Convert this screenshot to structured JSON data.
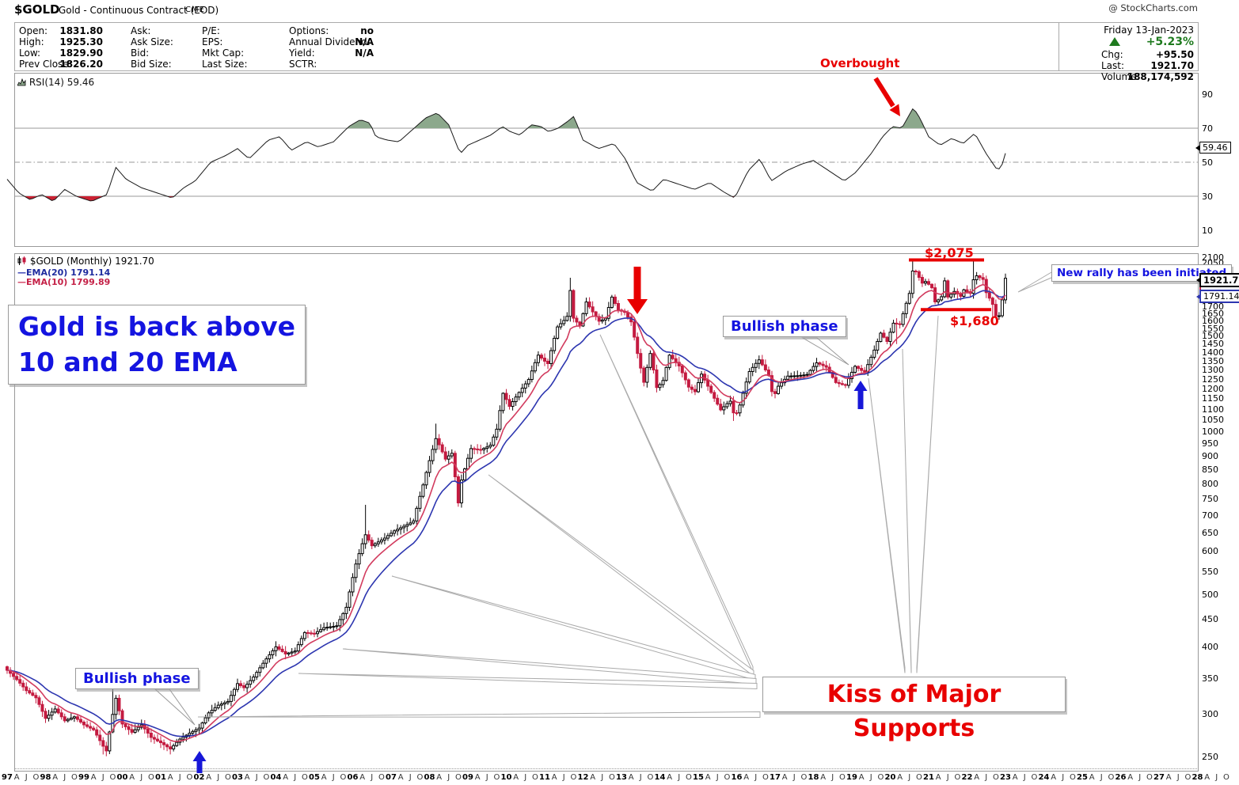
{
  "title": {
    "symbol": "$GOLD",
    "name": "Gold - Continuous Contract (EOD)",
    "exchange": "CME",
    "watermark": "@ StockCharts.com"
  },
  "info": {
    "col1": {
      "labels": [
        "Open:",
        "High:",
        "Low:",
        "Prev Close:"
      ],
      "values": [
        "1831.80",
        "1925.30",
        "1829.90",
        "1826.20"
      ]
    },
    "col2": {
      "labels": [
        "Ask:",
        "Ask Size:",
        "Bid:",
        "Bid Size:"
      ],
      "values": [
        "",
        "",
        "",
        ""
      ]
    },
    "col3": {
      "labels": [
        "P/E:",
        "EPS:",
        "Mkt Cap:",
        "Last Size:"
      ],
      "values": [
        "",
        "",
        "",
        ""
      ]
    },
    "col4": {
      "labels": [
        "Options:",
        "Annual Dividend:",
        "Yield:",
        "SCTR:"
      ],
      "values": [
        "no",
        "N/A",
        "N/A",
        ""
      ]
    },
    "quote": {
      "date": "Friday 13-Jan-2023",
      "pct": "+5.23%",
      "rows": [
        [
          "Chg:",
          "+95.50"
        ],
        [
          "Last:",
          "1921.70"
        ],
        [
          "Volume:",
          "188,174,592"
        ]
      ]
    }
  },
  "rsi_panel": {
    "legend": "RSI(14) 59.46",
    "tag": "59.46",
    "axis_labels": [
      90,
      70,
      50,
      30,
      10
    ],
    "annotation_overbought": "Overbought"
  },
  "main_panel": {
    "legend_symbol": "$GOLD (Monthly) 1921.70",
    "legend_ema20": "EMA(20) 1791.14",
    "legend_ema10": "EMA(10) 1799.89",
    "tag_last": "1921.70",
    "tag_ema20": "1791.14",
    "annotations": {
      "gold_back_line1": "Gold is back above",
      "gold_back_line2": "10 and 20 EMA",
      "bullish1": "Bullish phase",
      "bullish2": "Bullish phase",
      "new_rally": "New rally has been initiated",
      "kiss": "Kiss of Major Supports",
      "resistance": "$2,075",
      "support": "$1,680"
    }
  },
  "colors": {
    "annotation_blue": "#1414e0",
    "annotation_red": "#e80000",
    "candle_up_stroke": "#000000",
    "candle_down": "#c41b40",
    "ema10": "#d23b5e",
    "ema20": "#2d36b0",
    "legend_ema10_text": "#c42046",
    "legend_ema20_text": "#1e2b9e",
    "green": "#1e7a1e",
    "rsi_fill_overbought": "#8ca88c",
    "rsi_fill_oversold": "#cc2233",
    "gridline": "#999999",
    "fan_line": "#aaaaaa"
  },
  "chart_data": [
    {
      "type": "line",
      "name": "RSI(14)",
      "panel": "indicator",
      "last": 59.46,
      "ylim": [
        0,
        100
      ],
      "levels": {
        "overbought": 70,
        "midline": 50,
        "oversold": 30
      },
      "x_unit": "year_fraction",
      "points": [
        [
          1997.0,
          40
        ],
        [
          1997.3,
          32
        ],
        [
          1997.6,
          28
        ],
        [
          1997.9,
          31
        ],
        [
          1998.2,
          27
        ],
        [
          1998.5,
          34
        ],
        [
          1998.8,
          30
        ],
        [
          1999.2,
          27
        ],
        [
          1999.6,
          31
        ],
        [
          1999.83,
          47
        ],
        [
          2000.1,
          40
        ],
        [
          2000.5,
          35
        ],
        [
          2000.9,
          32
        ],
        [
          2001.3,
          29
        ],
        [
          2001.6,
          35
        ],
        [
          2001.9,
          39
        ],
        [
          2002.3,
          50
        ],
        [
          2002.7,
          54
        ],
        [
          2003.0,
          58
        ],
        [
          2003.3,
          52
        ],
        [
          2003.8,
          63
        ],
        [
          2004.1,
          65
        ],
        [
          2004.4,
          57
        ],
        [
          2004.8,
          62
        ],
        [
          2005.1,
          59
        ],
        [
          2005.5,
          62
        ],
        [
          2005.9,
          71
        ],
        [
          2006.2,
          75
        ],
        [
          2006.45,
          73
        ],
        [
          2006.6,
          65
        ],
        [
          2006.9,
          63
        ],
        [
          2007.2,
          62
        ],
        [
          2007.5,
          68
        ],
        [
          2007.9,
          76
        ],
        [
          2008.2,
          79
        ],
        [
          2008.5,
          72
        ],
        [
          2008.8,
          55
        ],
        [
          2009.0,
          60
        ],
        [
          2009.3,
          63
        ],
        [
          2009.6,
          66
        ],
        [
          2009.9,
          71
        ],
        [
          2010.1,
          68
        ],
        [
          2010.35,
          66
        ],
        [
          2010.66,
          72
        ],
        [
          2010.9,
          71
        ],
        [
          2011.1,
          68
        ],
        [
          2011.35,
          70
        ],
        [
          2011.6,
          74
        ],
        [
          2011.76,
          77
        ],
        [
          2012.0,
          63
        ],
        [
          2012.4,
          58
        ],
        [
          2012.8,
          61
        ],
        [
          2013.1,
          52
        ],
        [
          2013.4,
          38
        ],
        [
          2013.8,
          33
        ],
        [
          2014.1,
          40
        ],
        [
          2014.5,
          37
        ],
        [
          2014.9,
          34
        ],
        [
          2015.3,
          38
        ],
        [
          2015.7,
          32
        ],
        [
          2015.95,
          29
        ],
        [
          2016.3,
          45
        ],
        [
          2016.6,
          52
        ],
        [
          2016.9,
          39
        ],
        [
          2017.3,
          45
        ],
        [
          2017.7,
          49
        ],
        [
          2018.0,
          51
        ],
        [
          2018.4,
          45
        ],
        [
          2018.8,
          39
        ],
        [
          2019.1,
          44
        ],
        [
          2019.5,
          55
        ],
        [
          2019.8,
          65
        ],
        [
          2020.06,
          71
        ],
        [
          2020.3,
          70
        ],
        [
          2020.6,
          82
        ],
        [
          2020.77,
          76
        ],
        [
          2021.0,
          65
        ],
        [
          2021.3,
          60
        ],
        [
          2021.6,
          64
        ],
        [
          2021.9,
          61
        ],
        [
          2022.2,
          67
        ],
        [
          2022.5,
          55
        ],
        [
          2022.8,
          45
        ],
        [
          2022.95,
          50
        ],
        [
          2023.04,
          59.46
        ]
      ]
    },
    {
      "type": "candlestick",
      "name": "$GOLD Monthly",
      "yscale": "log",
      "ylim": [
        235,
        2150
      ],
      "xlim": [
        1997,
        2028.5
      ],
      "last": 1921.7,
      "overlays": [
        {
          "type": "ema",
          "period": 20,
          "last": 1791.14
        },
        {
          "type": "ema",
          "period": 10,
          "last": 1799.89
        }
      ],
      "levels": [
        {
          "label": "$2,075",
          "price": 2075
        },
        {
          "label": "$1,680",
          "price": 1680
        }
      ],
      "close_anchors": [
        [
          1997.0,
          362
        ],
        [
          1997.25,
          348
        ],
        [
          1997.5,
          332
        ],
        [
          1997.75,
          322
        ],
        [
          1998.0,
          295
        ],
        [
          1998.25,
          307
        ],
        [
          1998.5,
          292
        ],
        [
          1998.75,
          297
        ],
        [
          1999.0,
          287
        ],
        [
          1999.25,
          281
        ],
        [
          1999.58,
          256
        ],
        [
          1999.75,
          300
        ],
        [
          1999.83,
          322
        ],
        [
          2000.0,
          288
        ],
        [
          2000.25,
          278
        ],
        [
          2000.5,
          287
        ],
        [
          2000.75,
          272
        ],
        [
          2001.0,
          266
        ],
        [
          2001.25,
          259
        ],
        [
          2001.5,
          270
        ],
        [
          2001.75,
          277
        ],
        [
          2002.0,
          283
        ],
        [
          2002.25,
          302
        ],
        [
          2002.5,
          312
        ],
        [
          2002.75,
          317
        ],
        [
          2003.0,
          342
        ],
        [
          2003.17,
          336
        ],
        [
          2003.42,
          352
        ],
        [
          2003.75,
          380
        ],
        [
          2004.0,
          400
        ],
        [
          2004.25,
          388
        ],
        [
          2004.5,
          393
        ],
        [
          2004.75,
          425
        ],
        [
          2005.0,
          423
        ],
        [
          2005.25,
          434
        ],
        [
          2005.58,
          437
        ],
        [
          2005.83,
          472
        ],
        [
          2006.08,
          568
        ],
        [
          2006.33,
          645
        ],
        [
          2006.5,
          615
        ],
        [
          2006.83,
          635
        ],
        [
          2007.08,
          655
        ],
        [
          2007.33,
          668
        ],
        [
          2007.58,
          682
        ],
        [
          2007.83,
          795
        ],
        [
          2008.08,
          925
        ],
        [
          2008.17,
          972
        ],
        [
          2008.42,
          888
        ],
        [
          2008.58,
          915
        ],
        [
          2008.75,
          738
        ],
        [
          2008.83,
          812
        ],
        [
          2009.08,
          930
        ],
        [
          2009.33,
          925
        ],
        [
          2009.58,
          942
        ],
        [
          2009.75,
          1010
        ],
        [
          2009.92,
          1180
        ],
        [
          2010.08,
          1112
        ],
        [
          2010.33,
          1180
        ],
        [
          2010.58,
          1246
        ],
        [
          2010.83,
          1385
        ],
        [
          2011.08,
          1332
        ],
        [
          2011.33,
          1560
        ],
        [
          2011.58,
          1625
        ],
        [
          2011.67,
          1830
        ],
        [
          2011.75,
          1620
        ],
        [
          2011.92,
          1566
        ],
        [
          2012.08,
          1737
        ],
        [
          2012.25,
          1664
        ],
        [
          2012.42,
          1598
        ],
        [
          2012.58,
          1616
        ],
        [
          2012.75,
          1772
        ],
        [
          2012.92,
          1675
        ],
        [
          2013.08,
          1662
        ],
        [
          2013.25,
          1595
        ],
        [
          2013.42,
          1390
        ],
        [
          2013.58,
          1230
        ],
        [
          2013.75,
          1394
        ],
        [
          2013.92,
          1202
        ],
        [
          2014.08,
          1240
        ],
        [
          2014.25,
          1384
        ],
        [
          2014.5,
          1322
        ],
        [
          2014.75,
          1208
        ],
        [
          2014.92,
          1184
        ],
        [
          2015.08,
          1278
        ],
        [
          2015.33,
          1182
        ],
        [
          2015.58,
          1096
        ],
        [
          2015.83,
          1140
        ],
        [
          2015.95,
          1061
        ],
        [
          2016.08,
          1117
        ],
        [
          2016.33,
          1290
        ],
        [
          2016.58,
          1358
        ],
        [
          2016.83,
          1272
        ],
        [
          2016.95,
          1152
        ],
        [
          2017.08,
          1212
        ],
        [
          2017.33,
          1266
        ],
        [
          2017.58,
          1268
        ],
        [
          2017.83,
          1274
        ],
        [
          2018.08,
          1340
        ],
        [
          2018.33,
          1316
        ],
        [
          2018.58,
          1232
        ],
        [
          2018.83,
          1216
        ],
        [
          2019.08,
          1320
        ],
        [
          2019.33,
          1286
        ],
        [
          2019.58,
          1412
        ],
        [
          2019.75,
          1520
        ],
        [
          2019.92,
          1466
        ],
        [
          2020.08,
          1586
        ],
        [
          2020.25,
          1577
        ],
        [
          2020.5,
          1800
        ],
        [
          2020.58,
          1980
        ],
        [
          2020.67,
          1974
        ],
        [
          2020.83,
          1880
        ],
        [
          2020.92,
          1894
        ],
        [
          2021.08,
          1848
        ],
        [
          2021.17,
          1732
        ],
        [
          2021.33,
          1770
        ],
        [
          2021.42,
          1904
        ],
        [
          2021.5,
          1772
        ],
        [
          2021.67,
          1816
        ],
        [
          2021.83,
          1776
        ],
        [
          2021.92,
          1830
        ],
        [
          2022.08,
          1796
        ],
        [
          2022.17,
          1912
        ],
        [
          2022.25,
          1940
        ],
        [
          2022.42,
          1910
        ],
        [
          2022.5,
          1806
        ],
        [
          2022.58,
          1766
        ],
        [
          2022.67,
          1716
        ],
        [
          2022.75,
          1636
        ],
        [
          2022.83,
          1632
        ],
        [
          2022.92,
          1756
        ],
        [
          2023.0,
          1920
        ]
      ],
      "spikes": [
        {
          "m": "1999-10",
          "high": 338
        },
        {
          "m": "2006-05",
          "high": 732
        },
        {
          "m": "2008-03",
          "high": 1034
        },
        {
          "m": "2011-09",
          "high": 1924
        },
        {
          "m": "2020-03",
          "low": 1451
        },
        {
          "m": "2020-08",
          "high": 2075
        },
        {
          "m": "2022-03",
          "high": 2079
        },
        {
          "m": "2015-12",
          "low": 1046
        },
        {
          "m": "2022-09",
          "low": 1622
        },
        {
          "m": "2001-04",
          "low": 256
        },
        {
          "m": "1999-07",
          "low": 253
        }
      ]
    }
  ],
  "y_axis_main": {
    "min": 250,
    "max": 2100,
    "step": 50
  },
  "x_axis": {
    "start_year": 1997,
    "end_year": 2028,
    "quarter_labels": [
      "A",
      "J",
      "O"
    ]
  }
}
